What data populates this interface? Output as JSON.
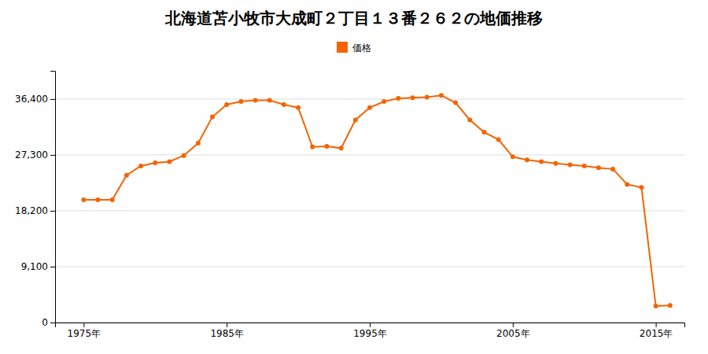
{
  "chart_data": {
    "type": "line",
    "title": "北海道苫小牧市大成町２丁目１３番２６２の地価推移",
    "x": [
      1975,
      1976,
      1977,
      1978,
      1979,
      1980,
      1981,
      1982,
      1983,
      1984,
      1985,
      1986,
      1987,
      1988,
      1989,
      1990,
      1991,
      1992,
      1993,
      1994,
      1995,
      1996,
      1997,
      1998,
      1999,
      2000,
      2001,
      2002,
      2003,
      2004,
      2005,
      2006,
      2007,
      2008,
      2009,
      2010,
      2011,
      2012,
      2013,
      2014,
      2015,
      2016
    ],
    "series": [
      {
        "name": "価格",
        "color": "#f56400",
        "marker": "circle",
        "values": [
          20000,
          20000,
          20000,
          24000,
          25500,
          26000,
          26200,
          27200,
          29200,
          33500,
          35500,
          36000,
          36200,
          36200,
          35500,
          35000,
          28600,
          28700,
          28400,
          33000,
          35000,
          36000,
          36500,
          36600,
          36700,
          37000,
          35800,
          33000,
          31000,
          29800,
          27000,
          26500,
          26200,
          25900,
          25700,
          25500,
          25200,
          25000,
          22500,
          22000,
          2700,
          2800
        ]
      }
    ],
    "xlim": [
      1973,
      2017
    ],
    "xticks": [
      {
        "value": 1975,
        "label": "1975年"
      },
      {
        "value": 1985,
        "label": "1985年"
      },
      {
        "value": 1995,
        "label": "1995年"
      },
      {
        "value": 2005,
        "label": "2005年"
      },
      {
        "value": 2015,
        "label": "2015年"
      }
    ],
    "ylim": [
      0,
      41000
    ],
    "yticks": [
      0,
      {
        "value": 9100,
        "label": "9,100"
      },
      {
        "value": 18200,
        "label": "18,200"
      },
      {
        "value": 27300,
        "label": "27,300"
      },
      {
        "value": 36400,
        "label": "36,400"
      }
    ],
    "grid": true,
    "legend": "top"
  }
}
